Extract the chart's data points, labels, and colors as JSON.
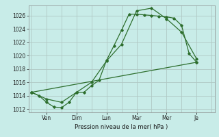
{
  "bg_color": "#c8ece8",
  "grid_color": "#b0c8c4",
  "line_color": "#2d6e2d",
  "title": "Pression niveau de la mer( hPa )",
  "ylim": [
    1011.5,
    1027.5
  ],
  "yticks": [
    1012,
    1014,
    1016,
    1018,
    1020,
    1022,
    1024,
    1026
  ],
  "x_tick_positions": [
    1,
    3,
    5,
    7,
    9,
    11
  ],
  "x_labels": [
    "Ven",
    "Dim",
    "Lun",
    "Mar",
    "Mer",
    "Je"
  ],
  "xlim": [
    -0.2,
    12.2
  ],
  "series1_x": [
    0,
    0.5,
    1.0,
    1.5,
    2.0,
    2.5,
    3.0,
    3.5,
    4.0,
    4.5,
    5.0,
    5.5,
    6.0,
    6.5,
    7.0,
    7.5,
    8.0,
    8.5,
    9.0,
    9.5,
    10.0,
    10.5,
    11.0
  ],
  "series1_y": [
    1014.5,
    1014.0,
    1013.0,
    1012.3,
    1012.2,
    1013.0,
    1014.5,
    1014.5,
    1015.5,
    1016.3,
    1019.3,
    1021.5,
    1023.8,
    1026.2,
    1026.2,
    1026.1,
    1026.0,
    1025.9,
    1025.8,
    1025.6,
    1024.5,
    1020.3,
    1019.0
  ],
  "series2_x": [
    0,
    1,
    2,
    3,
    4,
    5,
    6,
    7,
    8,
    9,
    10,
    11
  ],
  "series2_y": [
    1014.5,
    1013.5,
    1013.0,
    1014.5,
    1016.0,
    1019.2,
    1021.7,
    1026.7,
    1027.1,
    1025.5,
    1023.5,
    1019.5
  ],
  "series3_x": [
    0,
    11
  ],
  "series3_y": [
    1014.5,
    1019.0
  ],
  "ygrid_positions": [
    1012,
    1014,
    1016,
    1018,
    1020,
    1022,
    1024,
    1026
  ],
  "xgrid_positions": [
    0,
    1,
    2,
    3,
    4,
    5,
    6,
    7,
    8,
    9,
    10,
    11,
    12
  ]
}
